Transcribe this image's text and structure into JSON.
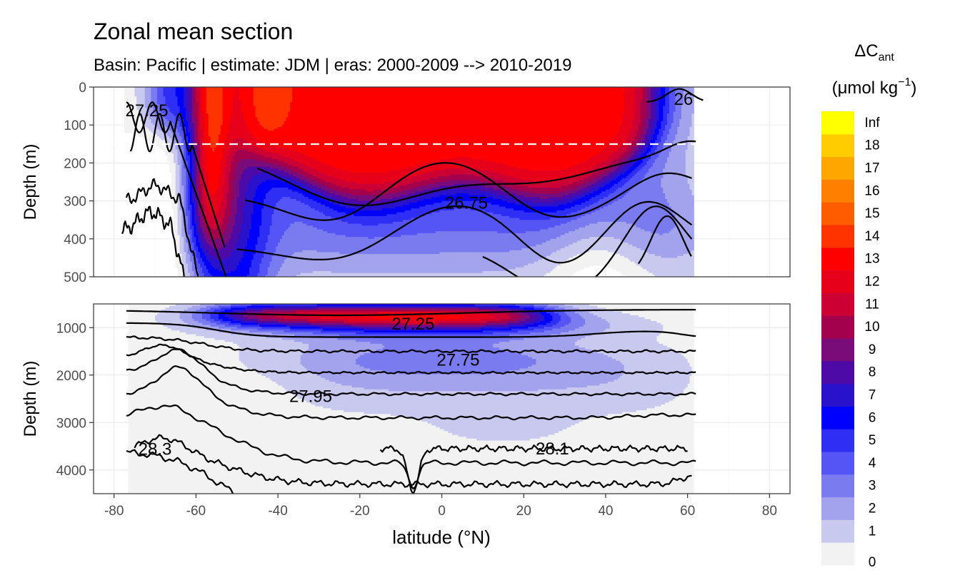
{
  "chart_data": {
    "type": "heatmap",
    "title": "Zonal mean section",
    "subtitle": "Basin: Pacific | estimate: JDM  | eras: 2000-2009 --> 2010-2019",
    "xlabel": "latitude (°N)",
    "xlim": [
      -85,
      85
    ],
    "x_ticks": [
      -80,
      -60,
      -40,
      -20,
      0,
      20,
      40,
      60,
      80
    ],
    "panels": [
      {
        "name": "upper",
        "ylabel": "Depth (m)",
        "ylim": [
          0,
          500
        ],
        "y_ticks": [
          0,
          100,
          200,
          300,
          400,
          500
        ],
        "reference_depth": 150,
        "isopycnal_labels": [
          {
            "text": "27.25",
            "lat": -72,
            "depth": 62
          },
          {
            "text": "26.75",
            "lat": 6,
            "depth": 305
          },
          {
            "text": "26",
            "lat": 59,
            "depth": 32
          }
        ]
      },
      {
        "name": "lower",
        "ylabel": "Depth (m)",
        "ylim": [
          500,
          4500
        ],
        "y_ticks": [
          1000,
          2000,
          3000,
          4000
        ],
        "isopycnal_labels": [
          {
            "text": "27.25",
            "lat": -7,
            "depth": 920
          },
          {
            "text": "27.75",
            "lat": 4,
            "depth": 1680
          },
          {
            "text": "27.95",
            "lat": -32,
            "depth": 2450
          },
          {
            "text": "28.3",
            "lat": -70,
            "depth": 3560
          },
          {
            "text": "28.1",
            "lat": 27,
            "depth": 3550
          }
        ]
      }
    ],
    "legend": {
      "title_line1": "ΔC",
      "title_sub": "ant",
      "title_line2_pre": "(μmol kg",
      "title_sup": "−1",
      "title_line2_post": ")",
      "labels": [
        "0",
        "1",
        "2",
        "3",
        "4",
        "5",
        "6",
        "7",
        "8",
        "9",
        "10",
        "11",
        "12",
        "13",
        "14",
        "15",
        "16",
        "17",
        "18",
        "Inf"
      ],
      "colors": [
        "#f2f2f2",
        "#c9c9ef",
        "#a3a3ed",
        "#7b7bf0",
        "#5555f5",
        "#2e2ef5",
        "#0000ff",
        "#2a12cc",
        "#4d0aa6",
        "#7a0c7a",
        "#a3004d",
        "#cc0033",
        "#e6001a",
        "#ff0000",
        "#ff3300",
        "#ff5c00",
        "#ff8000",
        "#ffa600",
        "#ffcc00",
        "#ffff00"
      ]
    }
  }
}
